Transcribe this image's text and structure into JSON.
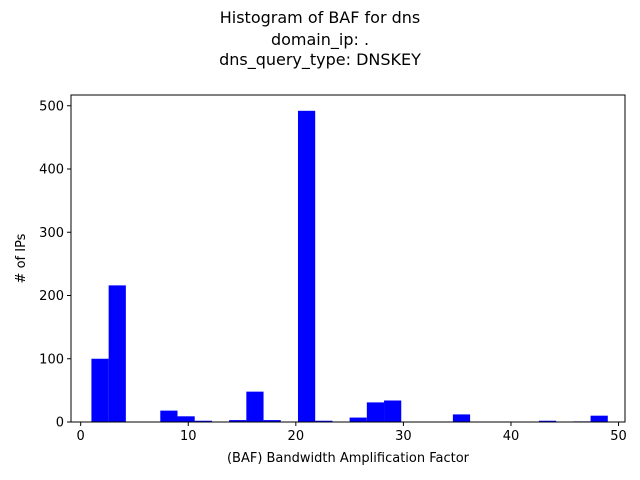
{
  "chart_data": {
    "type": "bar",
    "title_lines": [
      "Histogram of BAF for dns",
      "domain_ip: .",
      "dns_query_type: DNSKEY"
    ],
    "xlabel": "(BAF) Bandwidth Amplification Factor",
    "ylabel": "# of IPs",
    "xlim": [
      -0.9,
      50.6
    ],
    "ylim": [
      0,
      517
    ],
    "xticks": [
      0,
      10,
      20,
      30,
      40,
      50
    ],
    "yticks": [
      0,
      100,
      200,
      300,
      400,
      500
    ],
    "bar_color": "#0000ff",
    "bins": [
      {
        "x0": 1.0,
        "x1": 2.6,
        "count": 100
      },
      {
        "x0": 2.6,
        "x1": 4.2,
        "count": 216
      },
      {
        "x0": 7.4,
        "x1": 9.0,
        "count": 18
      },
      {
        "x0": 9.0,
        "x1": 10.6,
        "count": 9
      },
      {
        "x0": 10.6,
        "x1": 12.2,
        "count": 2
      },
      {
        "x0": 13.8,
        "x1": 15.4,
        "count": 3
      },
      {
        "x0": 15.4,
        "x1": 17.0,
        "count": 48
      },
      {
        "x0": 17.0,
        "x1": 18.6,
        "count": 3
      },
      {
        "x0": 20.2,
        "x1": 21.8,
        "count": 492
      },
      {
        "x0": 21.8,
        "x1": 23.4,
        "count": 2
      },
      {
        "x0": 25.0,
        "x1": 26.6,
        "count": 7
      },
      {
        "x0": 26.6,
        "x1": 28.2,
        "count": 31
      },
      {
        "x0": 28.2,
        "x1": 29.8,
        "count": 34
      },
      {
        "x0": 34.6,
        "x1": 36.2,
        "count": 12
      },
      {
        "x0": 42.6,
        "x1": 44.2,
        "count": 2
      },
      {
        "x0": 45.8,
        "x1": 47.4,
        "count": 1
      },
      {
        "x0": 47.4,
        "x1": 49.0,
        "count": 10
      }
    ]
  }
}
